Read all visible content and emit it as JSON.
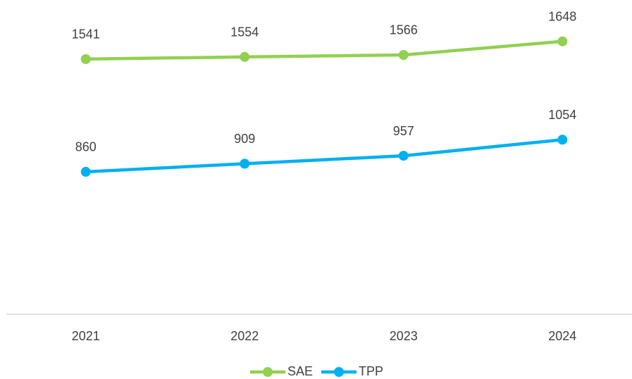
{
  "chart_data": {
    "type": "line",
    "categories": [
      "2021",
      "2022",
      "2023",
      "2024"
    ],
    "series": [
      {
        "name": "SAE",
        "color": "#92d050",
        "values": [
          1541,
          1554,
          1566,
          1648
        ]
      },
      {
        "name": "TPP",
        "color": "#00b0f0",
        "values": [
          860,
          909,
          957,
          1054
        ]
      }
    ],
    "ylim": [
      0,
      1800
    ],
    "legend": "bottom"
  }
}
